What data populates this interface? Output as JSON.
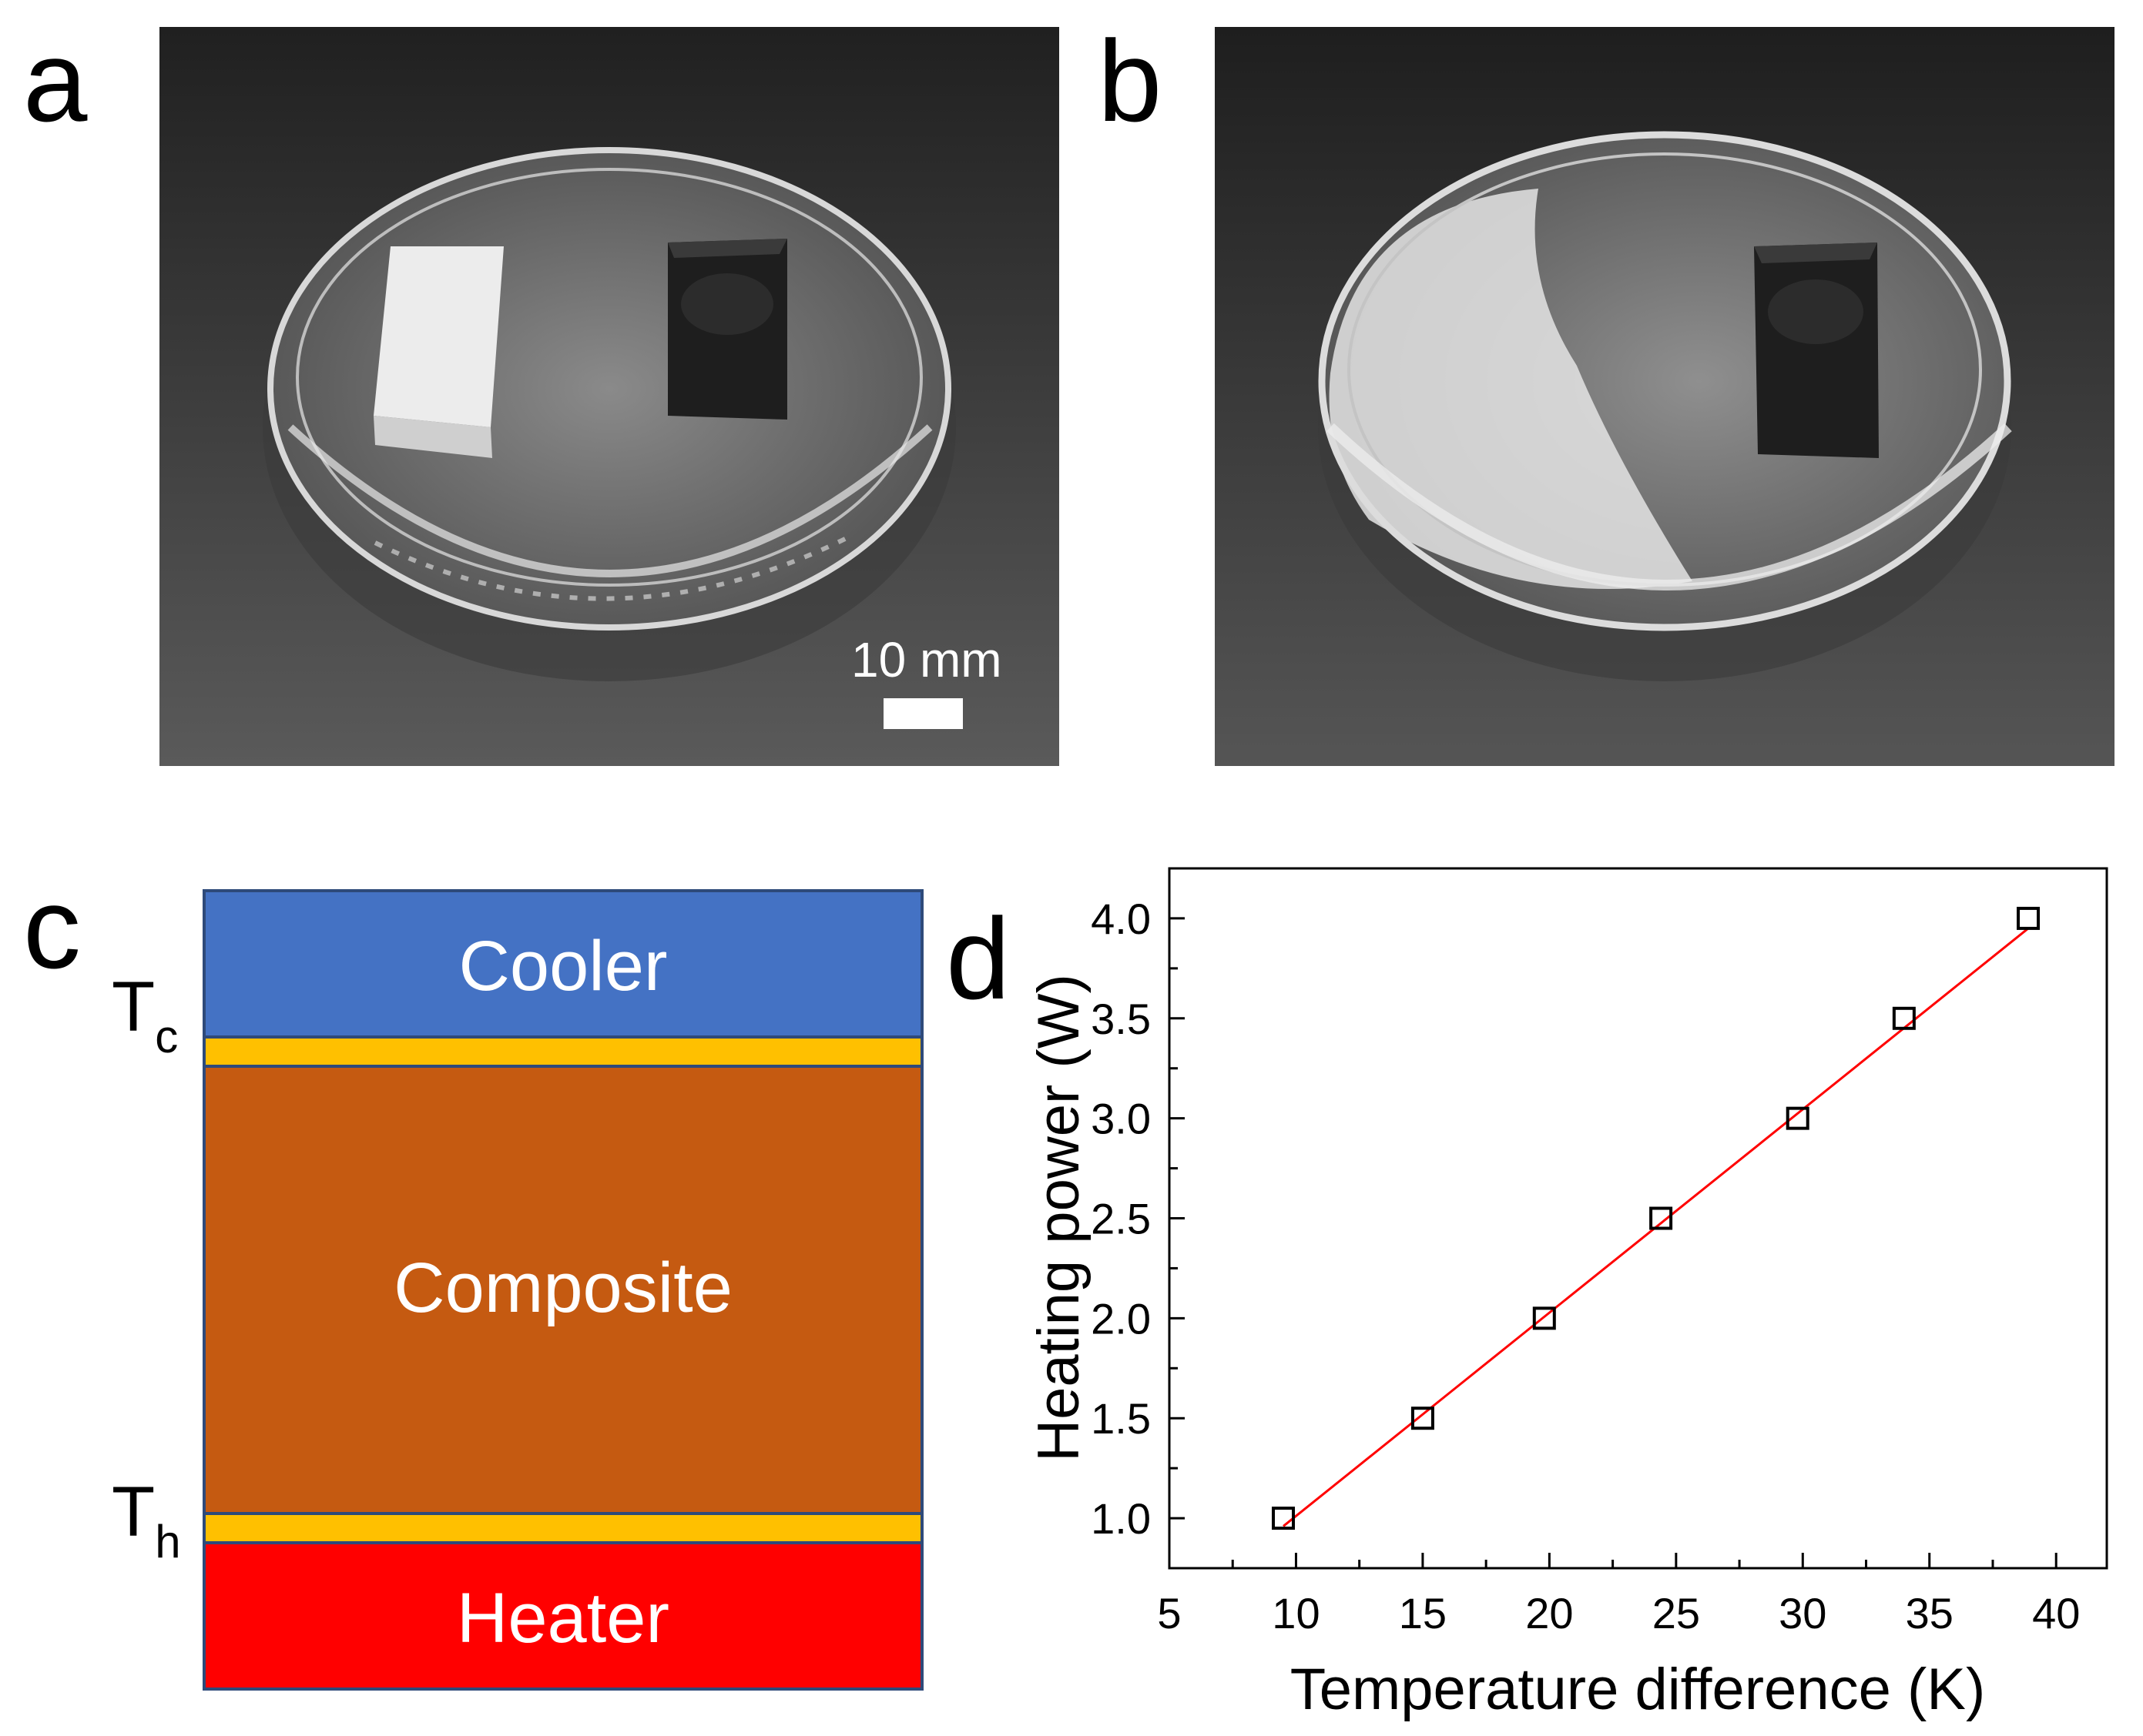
{
  "panels": {
    "a": {
      "letter": "a",
      "scale_label": "10 mm"
    },
    "b": {
      "letter": "b"
    },
    "c": {
      "letter": "c",
      "layers": {
        "cooler": "Cooler",
        "composite": "Composite",
        "heater": "Heater"
      },
      "colors": {
        "cooler": "#4472c4",
        "interface": "#ffc000",
        "composite": "#c55a11",
        "heater": "#ff0000"
      },
      "t_cold": {
        "base": "T",
        "sub": "c"
      },
      "t_hot": {
        "base": "T",
        "sub": "h"
      }
    },
    "d": {
      "letter": "d"
    }
  },
  "chart_data": {
    "type": "scatter",
    "xlabel": "Temperature difference (K)",
    "ylabel": "Heating power (W)",
    "xlim": [
      5,
      42
    ],
    "ylim": [
      0.75,
      4.25
    ],
    "xticks": [
      "5",
      "10",
      "15",
      "20",
      "25",
      "30",
      "35",
      "40"
    ],
    "yticks": [
      "1.0",
      "1.5",
      "2.0",
      "2.5",
      "3.0",
      "3.5",
      "4.0"
    ],
    "series": [
      {
        "marker": "open-square",
        "color": "#000000",
        "x": [
          9.5,
          15.0,
          19.8,
          24.4,
          29.8,
          34.0,
          38.9
        ],
        "y": [
          1.0,
          1.5,
          2.0,
          2.5,
          3.0,
          3.5,
          4.0
        ]
      }
    ],
    "fit_line": {
      "color": "#ff0000",
      "x": [
        9.5,
        38.9
      ],
      "y": [
        0.96,
        3.95
      ]
    },
    "grid": false
  }
}
